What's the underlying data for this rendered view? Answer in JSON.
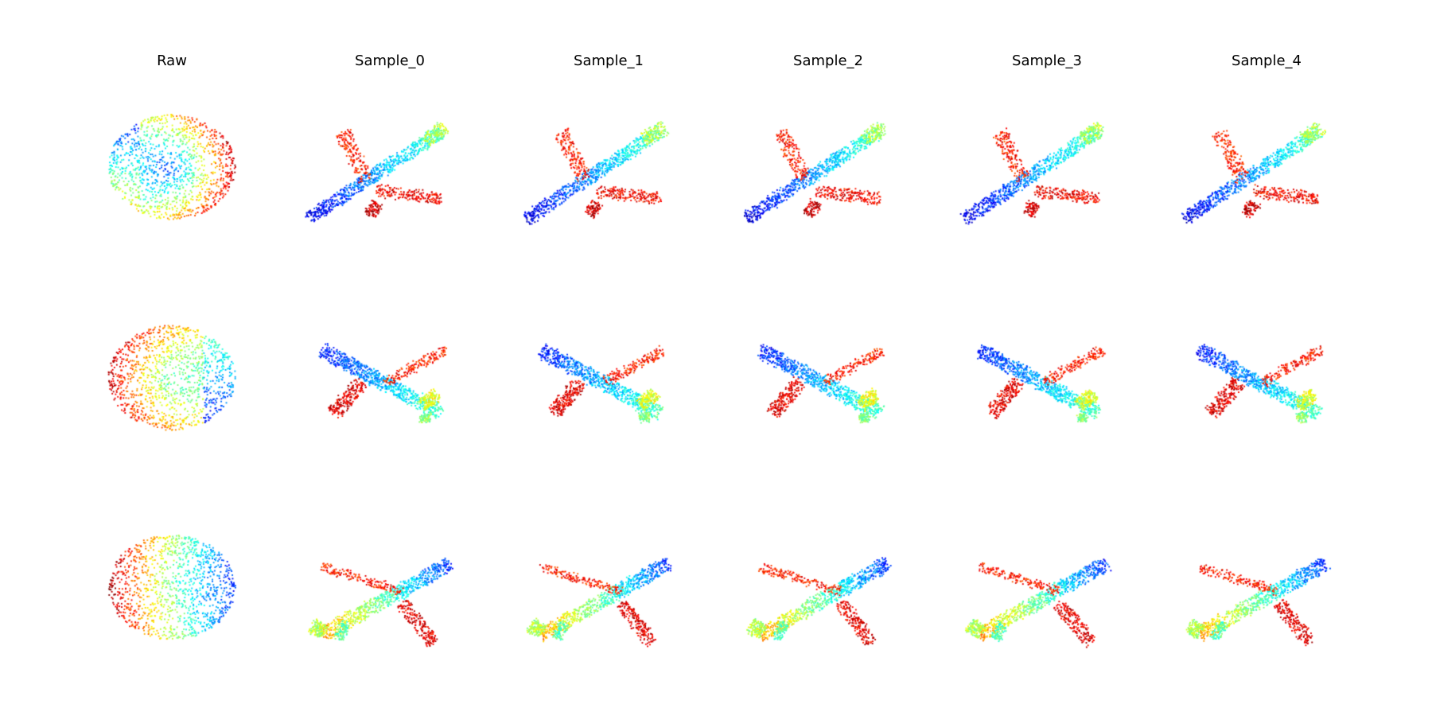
{
  "figure": {
    "columns": [
      {
        "key": "raw",
        "label": "Raw"
      },
      {
        "key": "sample_0",
        "label": "Sample_0"
      },
      {
        "key": "sample_1",
        "label": "Sample_1"
      },
      {
        "key": "sample_2",
        "label": "Sample_2"
      },
      {
        "key": "sample_3",
        "label": "Sample_3"
      },
      {
        "key": "sample_4",
        "label": "Sample_4"
      }
    ],
    "row_count": 3,
    "rows": [
      {
        "raw_shape": "sphere",
        "sample_shape": "airplane",
        "view": "nose-lower-left"
      },
      {
        "raw_shape": "sphere",
        "sample_shape": "airplane",
        "view": "nose-upper-left"
      },
      {
        "raw_shape": "sphere",
        "sample_shape": "airplane",
        "view": "nose-upper-right"
      }
    ],
    "colormap": "jet",
    "point_cloud_rendering": "scatter",
    "background_color": "#ffffff"
  }
}
